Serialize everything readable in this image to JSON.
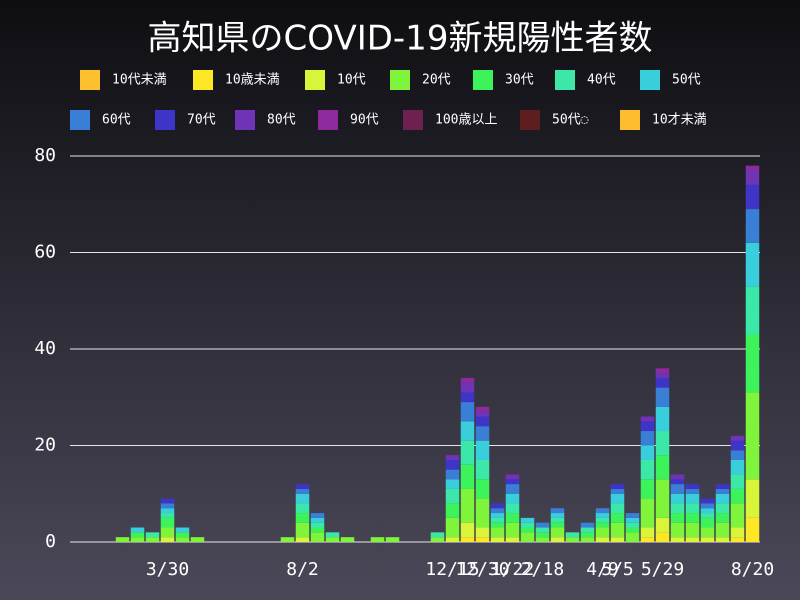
{
  "chart_data": {
    "type": "bar",
    "stacked": true,
    "title": "高知県のCOVID-19新規陽性者数",
    "categories": [
      null,
      null,
      null,
      null,
      null,
      null,
      "3/30",
      null,
      null,
      null,
      null,
      null,
      null,
      null,
      null,
      "8/2",
      null,
      null,
      null,
      null,
      null,
      null,
      null,
      null,
      null,
      "12/15",
      null,
      "12/30",
      null,
      "1/22",
      null,
      "2/18",
      null,
      null,
      null,
      "4/9",
      "5/5",
      null,
      null,
      "5/29",
      null,
      null,
      null,
      null,
      null,
      "8/20"
    ],
    "ylim": [
      0,
      80
    ],
    "yticks": [
      0,
      20,
      40,
      60,
      80
    ],
    "grid": true,
    "series": [
      {
        "name": "10代未満",
        "color": "#fdc02f",
        "values": [
          0,
          0,
          0,
          0,
          0,
          0,
          0,
          0,
          0,
          0,
          0,
          0,
          0,
          0,
          0,
          0,
          0,
          0,
          0,
          0,
          0,
          0,
          0,
          0,
          0,
          0,
          0,
          0,
          0,
          0,
          0,
          0,
          0,
          0,
          0,
          0,
          0,
          0,
          0,
          0,
          0,
          0,
          0,
          0,
          0,
          0
        ]
      },
      {
        "name": "10歳未満",
        "color": "#fde725",
        "values": [
          0,
          0,
          0,
          0,
          0,
          0,
          0,
          0,
          0,
          0,
          0,
          0,
          0,
          0,
          0,
          0,
          0,
          0,
          0,
          0,
          0,
          0,
          0,
          0,
          0,
          0,
          1,
          1,
          0,
          0,
          0,
          0,
          0,
          0,
          0,
          0,
          0,
          0,
          1,
          2,
          0,
          0,
          0,
          0,
          1,
          5
        ]
      },
      {
        "name": "10代",
        "color": "#d8f53a",
        "values": [
          0,
          0,
          0,
          0,
          0,
          0,
          1,
          0,
          0,
          0,
          0,
          0,
          0,
          0,
          0,
          1,
          0,
          0,
          0,
          0,
          0,
          0,
          0,
          0,
          0,
          1,
          3,
          2,
          1,
          1,
          0,
          0,
          1,
          0,
          0,
          1,
          1,
          0,
          2,
          3,
          1,
          1,
          1,
          1,
          2,
          8
        ]
      },
      {
        "name": "20代",
        "color": "#7ef53a",
        "values": [
          0,
          0,
          0,
          1,
          1,
          1,
          2,
          1,
          1,
          0,
          0,
          0,
          0,
          0,
          1,
          3,
          2,
          1,
          1,
          0,
          1,
          1,
          0,
          0,
          1,
          4,
          7,
          6,
          2,
          3,
          2,
          1,
          2,
          1,
          1,
          2,
          3,
          2,
          6,
          8,
          3,
          3,
          2,
          3,
          5,
          18
        ]
      },
      {
        "name": "30代",
        "color": "#3cf35c",
        "values": [
          0,
          0,
          0,
          0,
          1,
          0,
          2,
          1,
          0,
          0,
          0,
          0,
          0,
          0,
          0,
          2,
          1,
          0,
          0,
          0,
          0,
          0,
          0,
          0,
          0,
          3,
          5,
          4,
          1,
          2,
          1,
          1,
          1,
          0,
          1,
          1,
          2,
          1,
          4,
          5,
          2,
          2,
          2,
          2,
          3,
          12
        ]
      },
      {
        "name": "40代",
        "color": "#3ce8a8",
        "values": [
          0,
          0,
          0,
          0,
          0,
          1,
          1,
          0,
          0,
          0,
          0,
          0,
          0,
          0,
          0,
          2,
          1,
          1,
          0,
          0,
          0,
          0,
          0,
          0,
          1,
          3,
          5,
          4,
          1,
          2,
          1,
          1,
          1,
          1,
          1,
          1,
          2,
          1,
          4,
          5,
          2,
          2,
          1,
          2,
          3,
          10
        ]
      },
      {
        "name": "50代",
        "color": "#38cedc",
        "values": [
          0,
          0,
          0,
          0,
          1,
          0,
          1,
          1,
          0,
          0,
          0,
          0,
          0,
          0,
          0,
          2,
          1,
          0,
          0,
          0,
          0,
          0,
          0,
          0,
          0,
          2,
          4,
          4,
          1,
          2,
          1,
          0,
          1,
          0,
          0,
          1,
          2,
          1,
          3,
          5,
          2,
          2,
          1,
          2,
          3,
          9
        ]
      },
      {
        "name": "60代",
        "color": "#3a7fd6",
        "values": [
          0,
          0,
          0,
          0,
          0,
          0,
          1,
          0,
          0,
          0,
          0,
          0,
          0,
          0,
          0,
          1,
          1,
          0,
          0,
          0,
          0,
          0,
          0,
          0,
          0,
          2,
          4,
          3,
          1,
          2,
          0,
          1,
          1,
          0,
          1,
          1,
          1,
          1,
          3,
          4,
          2,
          1,
          1,
          1,
          2,
          7
        ]
      },
      {
        "name": "70代",
        "color": "#3e35c8",
        "values": [
          0,
          0,
          0,
          0,
          0,
          0,
          1,
          0,
          0,
          0,
          0,
          0,
          0,
          0,
          0,
          1,
          0,
          0,
          0,
          0,
          0,
          0,
          0,
          0,
          0,
          2,
          2,
          2,
          1,
          1,
          0,
          0,
          0,
          0,
          0,
          0,
          1,
          0,
          2,
          2,
          1,
          1,
          1,
          1,
          2,
          5
        ]
      },
      {
        "name": "80代",
        "color": "#6f33b5",
        "values": [
          0,
          0,
          0,
          0,
          0,
          0,
          0,
          0,
          0,
          0,
          0,
          0,
          0,
          0,
          0,
          0,
          0,
          0,
          0,
          0,
          0,
          0,
          0,
          0,
          0,
          1,
          2,
          1,
          0,
          1,
          0,
          0,
          0,
          0,
          0,
          0,
          0,
          0,
          1,
          1,
          1,
          0,
          0,
          0,
          1,
          3
        ]
      },
      {
        "name": "90代",
        "color": "#8c2a9e",
        "values": [
          0,
          0,
          0,
          0,
          0,
          0,
          0,
          0,
          0,
          0,
          0,
          0,
          0,
          0,
          0,
          0,
          0,
          0,
          0,
          0,
          0,
          0,
          0,
          0,
          0,
          0,
          1,
          1,
          0,
          0,
          0,
          0,
          0,
          0,
          0,
          0,
          0,
          0,
          0,
          1,
          0,
          0,
          0,
          0,
          0,
          1
        ]
      },
      {
        "name": "100歳以上",
        "color": "#6e2050",
        "values": [
          0,
          0,
          0,
          0,
          0,
          0,
          0,
          0,
          0,
          0,
          0,
          0,
          0,
          0,
          0,
          0,
          0,
          0,
          0,
          0,
          0,
          0,
          0,
          0,
          0,
          0,
          0,
          0,
          0,
          0,
          0,
          0,
          0,
          0,
          0,
          0,
          0,
          0,
          0,
          0,
          0,
          0,
          0,
          0,
          0,
          0
        ]
      },
      {
        "name": "50代◌",
        "color": "#5e1e20",
        "values": [
          0,
          0,
          0,
          0,
          0,
          0,
          0,
          0,
          0,
          0,
          0,
          0,
          0,
          0,
          0,
          0,
          0,
          0,
          0,
          0,
          0,
          0,
          0,
          0,
          0,
          0,
          0,
          0,
          0,
          0,
          0,
          0,
          0,
          0,
          0,
          0,
          0,
          0,
          0,
          0,
          0,
          0,
          0,
          0,
          0,
          0
        ]
      },
      {
        "name": "10才未満",
        "color": "#fdbd2f",
        "values": [
          0,
          0,
          0,
          0,
          0,
          0,
          0,
          0,
          0,
          0,
          0,
          0,
          0,
          0,
          0,
          0,
          0,
          0,
          0,
          0,
          0,
          0,
          0,
          0,
          0,
          0,
          0,
          0,
          0,
          0,
          0,
          0,
          0,
          0,
          0,
          0,
          0,
          0,
          0,
          0,
          0,
          0,
          0,
          0,
          0,
          0
        ]
      }
    ]
  }
}
